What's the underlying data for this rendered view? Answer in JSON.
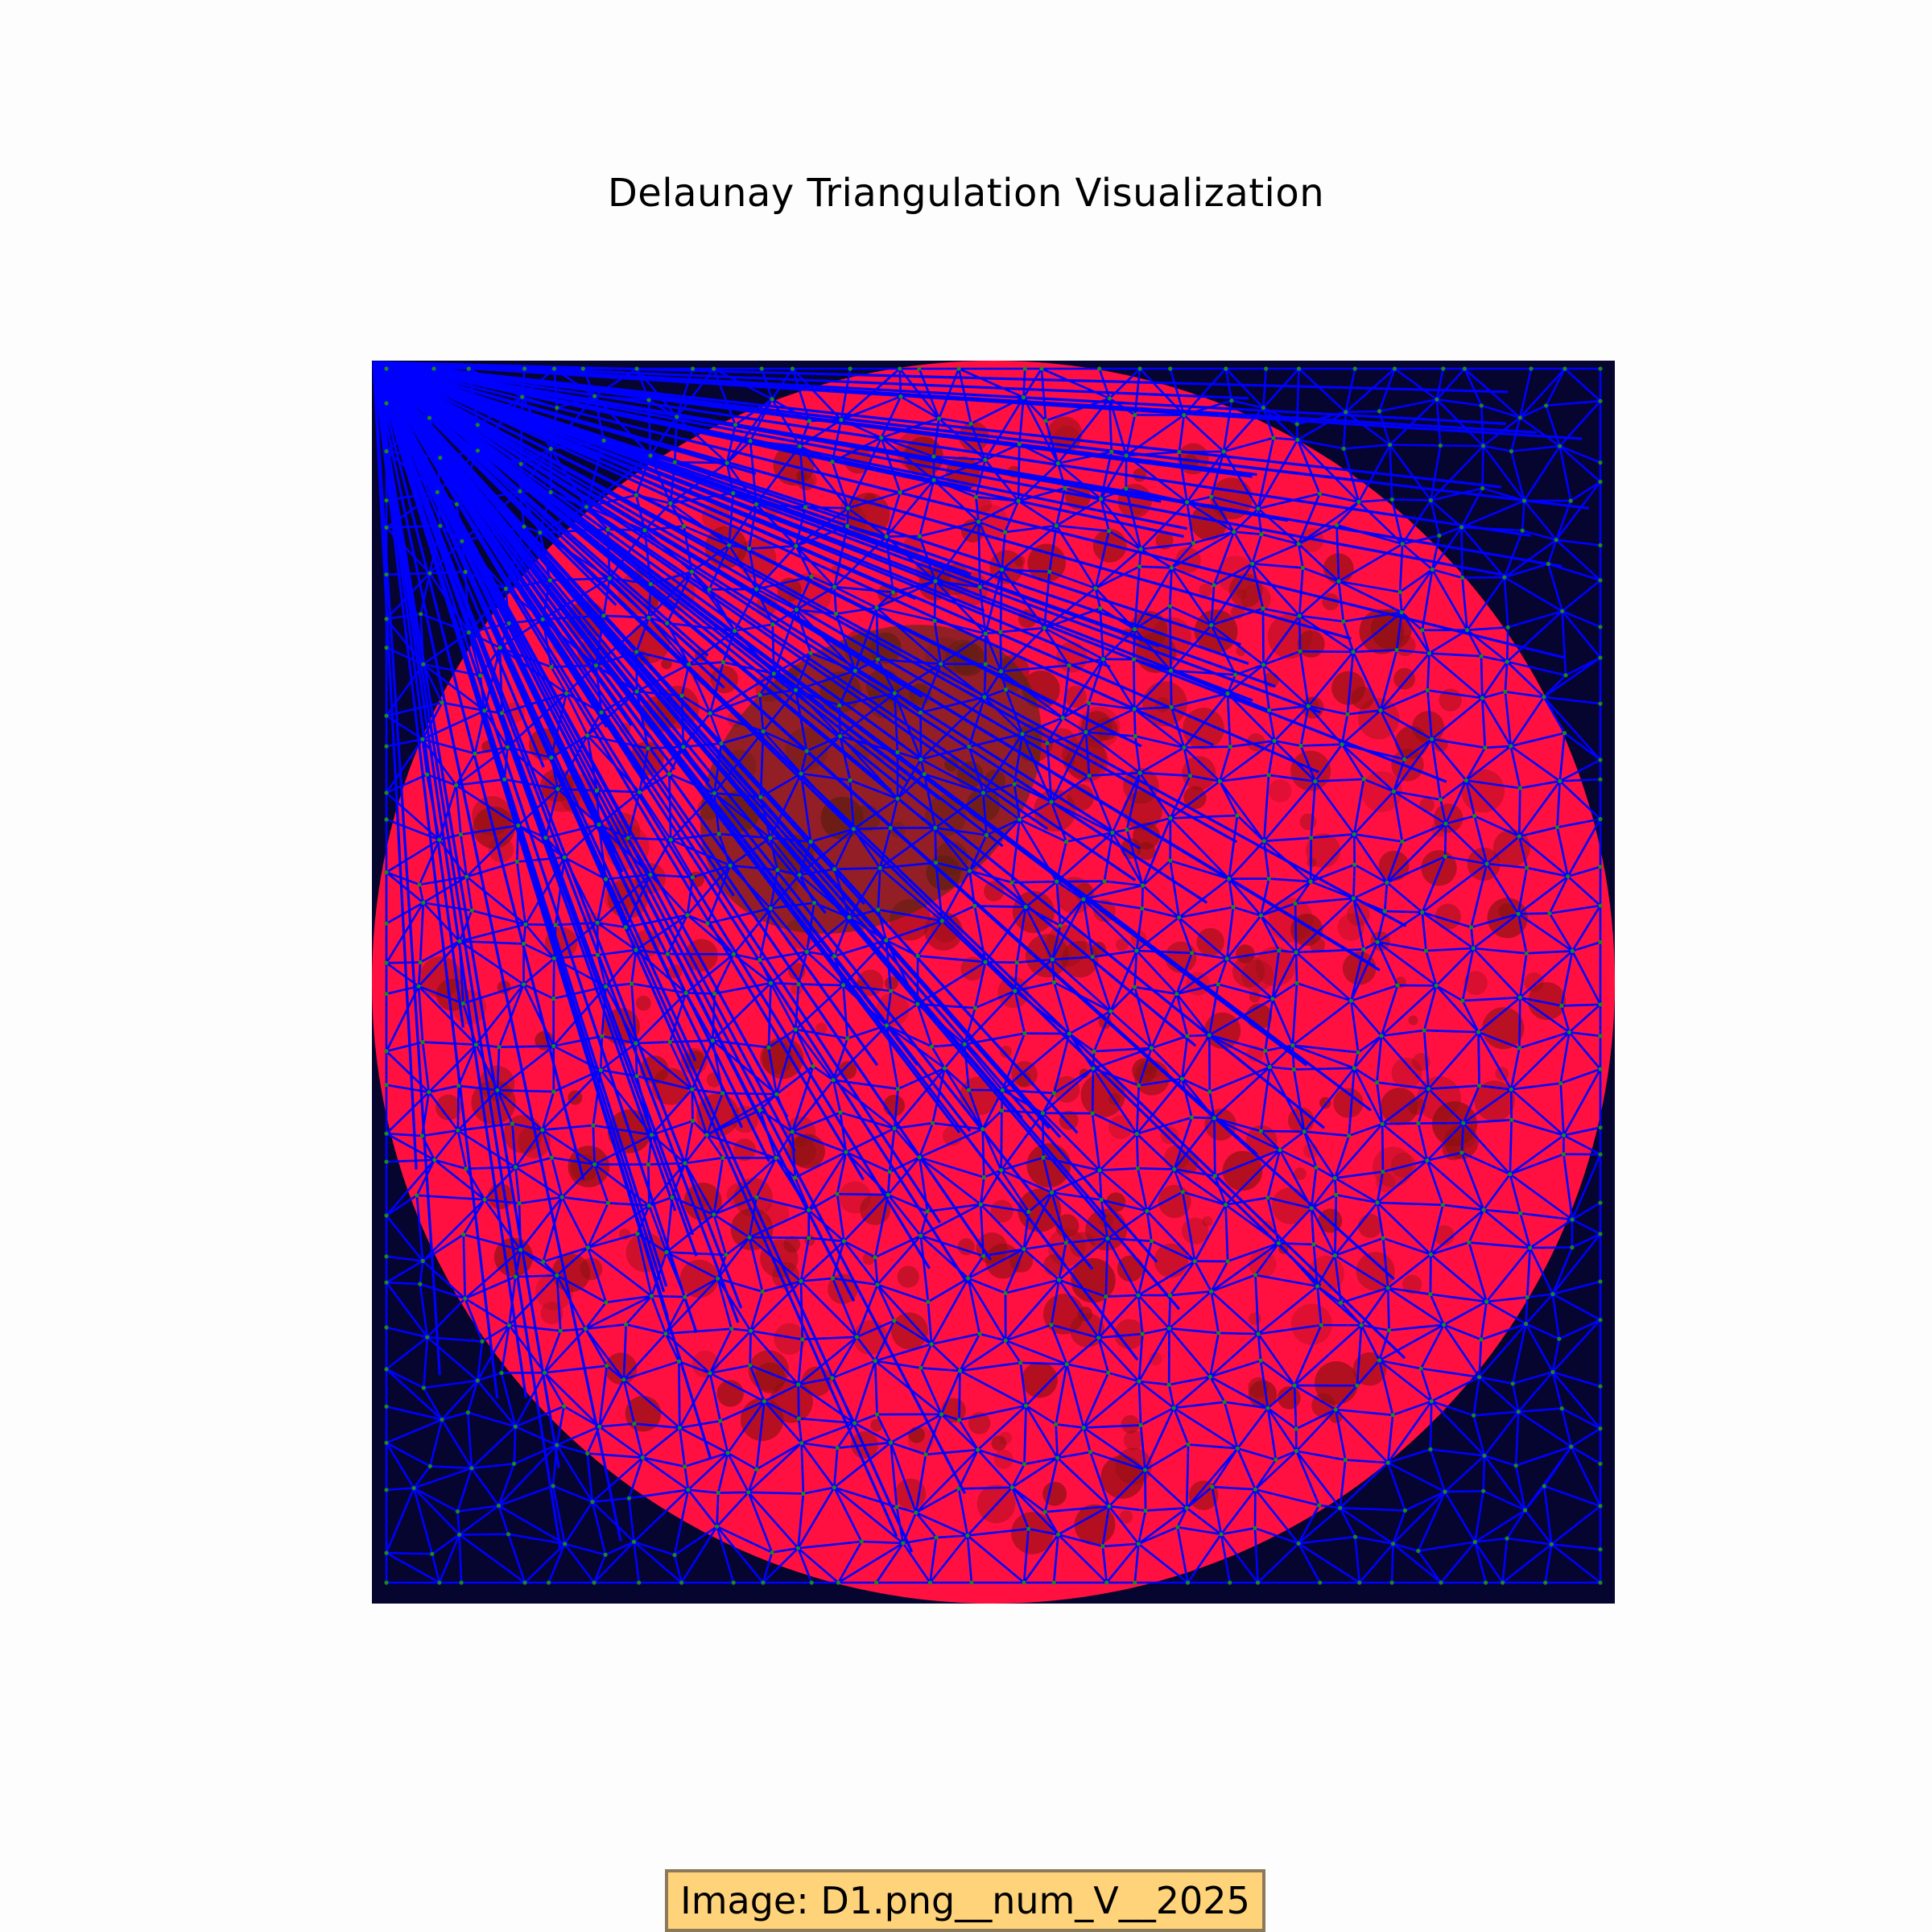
{
  "title": "Delaunay Triangulation Visualization",
  "caption": "Image: D1.png__num_V__2025",
  "colors": {
    "background": "#fdfdfd",
    "image_background": "#050530",
    "disc": "#ff1040",
    "disc_texture": "#8a1010",
    "edges": "#0000ff",
    "vertices": "#1a8a1a",
    "caption_box": "#ffd37a"
  }
}
